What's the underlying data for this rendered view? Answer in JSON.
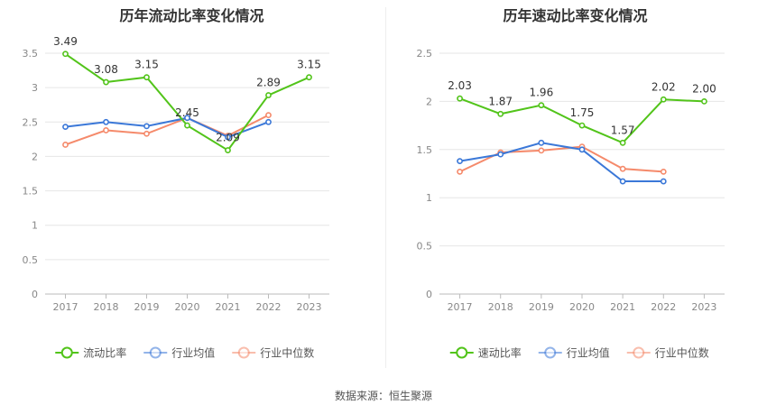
{
  "source": "数据来源：恒生聚源",
  "chart_data": [
    {
      "type": "line",
      "title": "历年流动比率变化情况",
      "categories": [
        "2017",
        "2018",
        "2019",
        "2020",
        "2021",
        "2022",
        "2023"
      ],
      "ylim": [
        0,
        3.5
      ],
      "yticks": [
        "0",
        "0.5",
        "1",
        "1.5",
        "2",
        "2.5",
        "3",
        "3.5"
      ],
      "grid": true,
      "legend_position": "bottom",
      "series": [
        {
          "name": "流动比率",
          "color": "#52c41a",
          "values": [
            3.49,
            3.08,
            3.15,
            2.45,
            2.09,
            2.89,
            3.15
          ],
          "labels": [
            "3.49",
            "3.08",
            "3.15",
            "2.45",
            "2.09",
            "2.89",
            "3.15"
          ]
        },
        {
          "name": "行业均值",
          "color": "#3b78d8",
          "values": [
            2.43,
            2.5,
            2.44,
            2.56,
            2.28,
            2.5,
            null
          ]
        },
        {
          "name": "行业中位数",
          "color": "#f58a6b",
          "values": [
            2.17,
            2.38,
            2.33,
            2.56,
            2.3,
            2.6,
            null
          ]
        }
      ]
    },
    {
      "type": "line",
      "title": "历年速动比率变化情况",
      "categories": [
        "2017",
        "2018",
        "2019",
        "2020",
        "2021",
        "2022",
        "2023"
      ],
      "ylim": [
        0,
        2.5
      ],
      "yticks": [
        "0",
        "0.5",
        "1",
        "1.5",
        "2",
        "2.5"
      ],
      "grid": true,
      "legend_position": "bottom",
      "series": [
        {
          "name": "速动比率",
          "color": "#52c41a",
          "values": [
            2.03,
            1.87,
            1.96,
            1.75,
            1.57,
            2.02,
            2.0
          ],
          "labels": [
            "2.03",
            "1.87",
            "1.96",
            "1.75",
            "1.57",
            "2.02",
            "2.00"
          ]
        },
        {
          "name": "行业均值",
          "color": "#3b78d8",
          "values": [
            1.38,
            1.45,
            1.57,
            1.5,
            1.17,
            1.17,
            null
          ]
        },
        {
          "name": "行业中位数",
          "color": "#f58a6b",
          "values": [
            1.27,
            1.47,
            1.49,
            1.53,
            1.3,
            1.27,
            null
          ]
        }
      ]
    }
  ]
}
